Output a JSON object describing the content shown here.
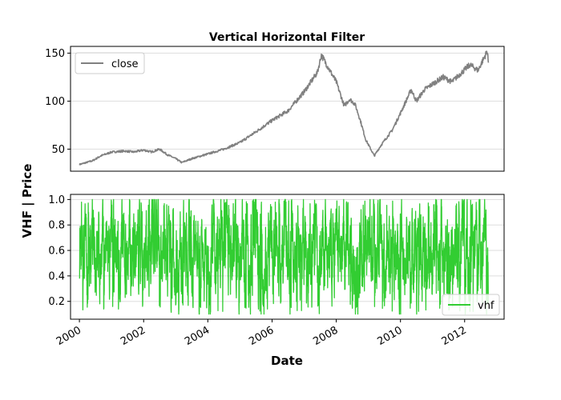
{
  "chart_data": [
    {
      "panel": "top",
      "type": "line",
      "title": "Vertical Horizontal Filter",
      "ylim": [
        27,
        157
      ],
      "yticks": [
        50,
        100,
        150
      ],
      "grid": true,
      "legend_placement": "top-left",
      "series": [
        {
          "name": "close",
          "color": "#808080",
          "x": [
            "2000-01-03",
            "2000-06-01",
            "2000-09-01",
            "2001-01-02",
            "2001-06-01",
            "2001-09-10",
            "2002-01-02",
            "2002-04-01",
            "2002-07-01",
            "2002-10-01",
            "2003-01-02",
            "2003-03-11",
            "2003-07-01",
            "2004-01-02",
            "2004-07-01",
            "2005-01-03",
            "2005-07-01",
            "2006-01-03",
            "2006-07-03",
            "2007-01-03",
            "2007-06-01",
            "2007-07-16",
            "2007-11-01",
            "2008-01-02",
            "2008-04-01",
            "2008-06-02",
            "2008-08-01",
            "2008-10-01",
            "2008-12-01",
            "2009-03-09",
            "2009-06-01",
            "2009-10-01",
            "2010-01-04",
            "2010-05-03",
            "2010-07-01",
            "2010-10-01",
            "2011-01-03",
            "2011-05-02",
            "2011-08-08",
            "2011-12-01",
            "2012-03-01",
            "2012-06-01",
            "2012-09-14",
            "2012-09-28"
          ],
          "values": [
            34,
            38,
            43,
            47,
            48,
            47,
            49,
            47,
            50,
            44,
            40,
            36,
            40,
            45,
            50,
            57,
            68,
            80,
            90,
            110,
            130,
            148,
            130,
            120,
            95,
            102,
            97,
            80,
            60,
            43,
            55,
            70,
            88,
            112,
            100,
            112,
            118,
            125,
            120,
            130,
            138,
            132,
            152,
            140
          ]
        }
      ]
    },
    {
      "panel": "bottom",
      "type": "line",
      "ylabel": "VHF | Price",
      "xlabel": "Date",
      "ylim": [
        0.06,
        1.04
      ],
      "yticks": [
        0.2,
        0.4,
        0.6,
        0.8,
        1.0
      ],
      "xlim": [
        "1999-09-22",
        "2013-03-25"
      ],
      "xticks": [
        "2000",
        "2002",
        "2004",
        "2006",
        "2008",
        "2010",
        "2012"
      ],
      "grid": true,
      "legend_placement": "lower-right",
      "series": [
        {
          "name": "vhf",
          "color": "#32cd32",
          "x_range": [
            "2000-01-03",
            "2012-09-28"
          ],
          "min": 0.1,
          "max": 1.0,
          "typical_range": [
            0.3,
            0.9
          ]
        }
      ]
    }
  ],
  "axes": {
    "top_ytick_labels": [
      "50",
      "100",
      "150"
    ],
    "bottom_ytick_labels": [
      "0.2",
      "0.4",
      "0.6",
      "0.8",
      "1.0"
    ],
    "xtick_labels": [
      "2000",
      "2002",
      "2004",
      "2006",
      "2008",
      "2010",
      "2012"
    ]
  }
}
